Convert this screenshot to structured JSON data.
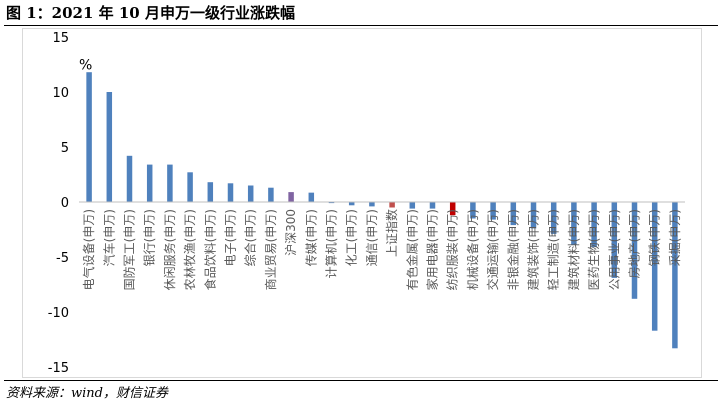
{
  "title": "图 1：2021 年 10 月申万一级行业涨跌幅",
  "source": "资料来源：wind，财信证券",
  "chart_data": {
    "type": "bar",
    "unit_label": "%",
    "ylim": [
      -15,
      15
    ],
    "yticks": [
      15,
      10,
      5,
      0,
      -5,
      -10,
      -15
    ],
    "grid": false,
    "legend": "none",
    "colors": {
      "default": "#4f81bd",
      "hs300": "#8064a2",
      "sz": "#c0504d",
      "textile": "#c00000",
      "tick_label": "#595959"
    },
    "categories": [
      "电气设备(申万)",
      "汽车(申万)",
      "国防军工(申万)",
      "银行(申万)",
      "休闲服务(申万)",
      "农林牧渔(申万)",
      "食品饮料(申万)",
      "电子(申万)",
      "综合(申万)",
      "商业贸易(申万)",
      "沪深300",
      "传媒(申万)",
      "计算机(申万)",
      "化工(申万)",
      "通信(申万)",
      "上证指数",
      "有色金属(申万)",
      "家用电器(申万)",
      "纺织服装(申万)",
      "机械设备(申万)",
      "交通运输(申万)",
      "非银金融(申万)",
      "建筑装饰(申万)",
      "轻工制造(申万)",
      "建筑材料(申万)",
      "医药生物(申万)",
      "公用事业(申万)",
      "房地产(申万)",
      "钢铁(申万)",
      "采掘(申万)"
    ],
    "values": [
      11.8,
      10.0,
      4.2,
      3.4,
      3.4,
      2.7,
      1.8,
      1.7,
      1.5,
      1.3,
      0.9,
      0.85,
      -0.1,
      -0.3,
      -0.4,
      -0.5,
      -0.6,
      -0.6,
      -1.2,
      -1.5,
      -1.6,
      -2.1,
      -2.4,
      -2.9,
      -3.9,
      -4.1,
      -6.9,
      -8.8,
      -11.7,
      -13.3
    ],
    "bar_color_keys": [
      "default",
      "default",
      "default",
      "default",
      "default",
      "default",
      "default",
      "default",
      "default",
      "default",
      "hs300",
      "default",
      "default",
      "default",
      "default",
      "sz",
      "default",
      "default",
      "textile",
      "default",
      "default",
      "default",
      "default",
      "default",
      "default",
      "default",
      "default",
      "default",
      "default",
      "default"
    ]
  }
}
